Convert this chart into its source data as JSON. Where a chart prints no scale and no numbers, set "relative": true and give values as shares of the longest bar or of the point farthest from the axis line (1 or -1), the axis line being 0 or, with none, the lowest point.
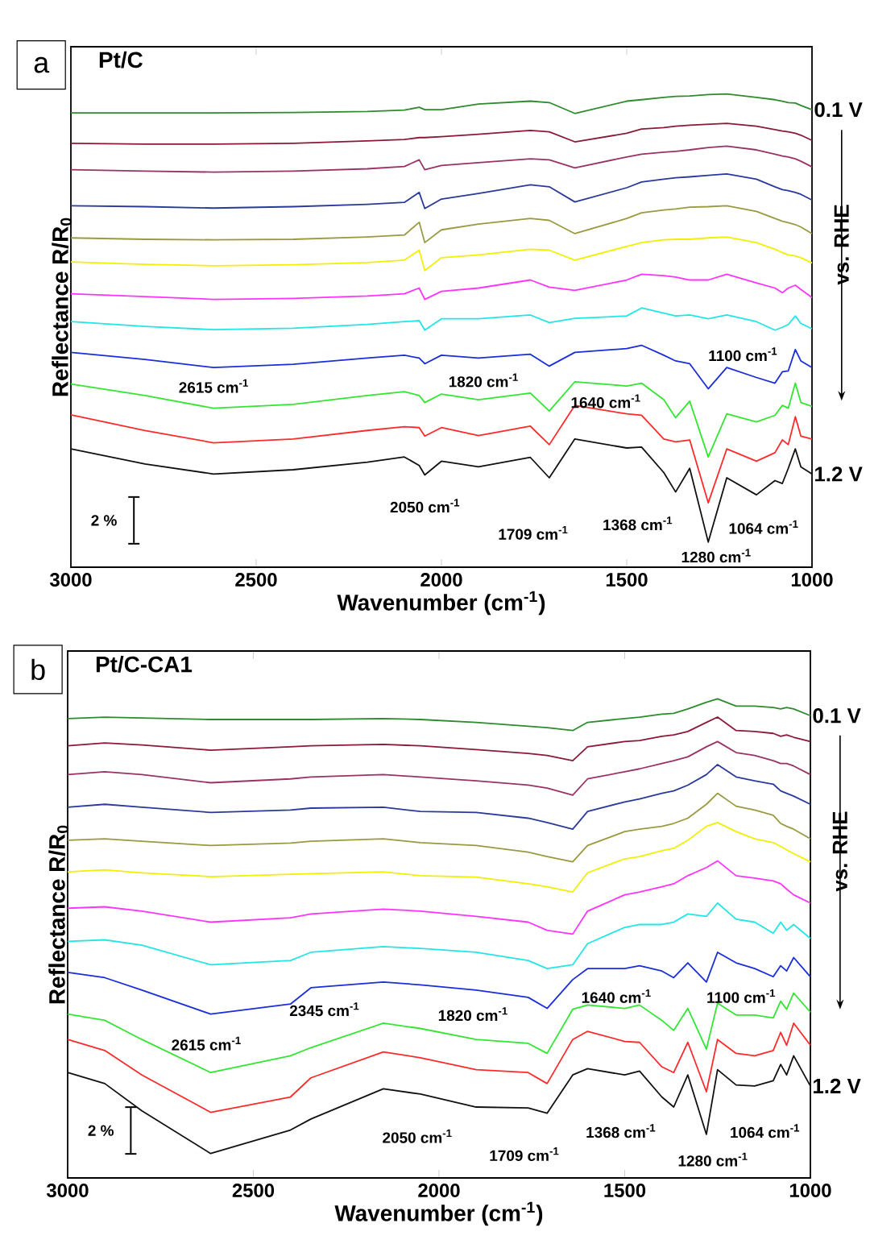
{
  "chart_data": [
    {
      "type": "line",
      "relative": true,
      "title": "Pt/C",
      "xlabel": "Wavenumber (cm$^{-1}$)",
      "ylabel": "Reflectance R/R$_{0}$",
      "xlim": [
        3000,
        1000
      ],
      "xticks": [
        3000,
        2500,
        2000,
        1500,
        1000
      ],
      "marker": "none",
      "grid": false,
      "x": [
        3000,
        2800,
        2615,
        2400,
        2200,
        2100,
        2060,
        2045,
        2000,
        1900,
        1760,
        1709,
        1640,
        1500,
        1460,
        1400,
        1368,
        1330,
        1280,
        1230,
        1150,
        1100,
        1080,
        1064,
        1045,
        1030,
        1000
      ],
      "series": [
        {
          "color": "#2e8b2e",
          "values": [
            0.96,
            0.96,
            0.96,
            0.961,
            0.963,
            0.966,
            0.972,
            0.967,
            0.967,
            0.979,
            0.985,
            0.982,
            0.959,
            0.985,
            0.988,
            0.993,
            0.995,
            0.996,
            0.999,
            1,
            0.993,
            0.988,
            0.985,
            0.982,
            0.981,
            0.976,
            0.967
          ]
        },
        {
          "color": "#8b1a3a",
          "values": [
            0.896,
            0.894,
            0.894,
            0.896,
            0.901,
            0.904,
            0.908,
            0.908,
            0.91,
            0.915,
            0.923,
            0.92,
            0.899,
            0.917,
            0.926,
            0.929,
            0.932,
            0.934,
            0.936,
            0.938,
            0.932,
            0.925,
            0.922,
            0.92,
            0.917,
            0.913,
            0.902
          ]
        },
        {
          "color": "#993366",
          "values": [
            0.84,
            0.837,
            0.835,
            0.837,
            0.842,
            0.847,
            0.861,
            0.84,
            0.849,
            0.855,
            0.863,
            0.861,
            0.844,
            0.867,
            0.873,
            0.877,
            0.879,
            0.882,
            0.887,
            0.89,
            0.882,
            0.873,
            0.869,
            0.867,
            0.863,
            0.858,
            0.846
          ]
        },
        {
          "color": "#2a3a9a",
          "values": [
            0.764,
            0.762,
            0.759,
            0.762,
            0.767,
            0.771,
            0.792,
            0.758,
            0.778,
            0.79,
            0.808,
            0.804,
            0.772,
            0.802,
            0.814,
            0.82,
            0.823,
            0.825,
            0.828,
            0.831,
            0.82,
            0.804,
            0.798,
            0.796,
            0.792,
            0.788,
            0.776
          ]
        },
        {
          "color": "#9a9a40",
          "values": [
            0.696,
            0.693,
            0.692,
            0.693,
            0.698,
            0.702,
            0.729,
            0.686,
            0.713,
            0.725,
            0.737,
            0.733,
            0.705,
            0.737,
            0.749,
            0.755,
            0.757,
            0.761,
            0.762,
            0.764,
            0.752,
            0.737,
            0.731,
            0.728,
            0.724,
            0.719,
            0.705
          ]
        },
        {
          "color": "#f0f000",
          "values": [
            0.645,
            0.64,
            0.637,
            0.639,
            0.644,
            0.649,
            0.67,
            0.627,
            0.654,
            0.66,
            0.672,
            0.67,
            0.649,
            0.678,
            0.686,
            0.692,
            0.693,
            0.693,
            0.696,
            0.698,
            0.686,
            0.672,
            0.665,
            0.66,
            0.658,
            0.654,
            0.643
          ]
        },
        {
          "color": "#ff33ff",
          "values": [
            0.578,
            0.572,
            0.566,
            0.568,
            0.573,
            0.578,
            0.59,
            0.566,
            0.583,
            0.59,
            0.607,
            0.592,
            0.585,
            0.607,
            0.619,
            0.616,
            0.613,
            0.607,
            0.607,
            0.619,
            0.601,
            0.59,
            0.58,
            0.59,
            0.596,
            0.587,
            0.57
          ]
        },
        {
          "color": "#22e6e6",
          "values": [
            0.519,
            0.509,
            0.502,
            0.505,
            0.513,
            0.519,
            0.521,
            0.501,
            0.525,
            0.525,
            0.533,
            0.517,
            0.526,
            0.531,
            0.548,
            0.537,
            0.531,
            0.533,
            0.525,
            0.533,
            0.519,
            0.501,
            0.507,
            0.513,
            0.531,
            0.515,
            0.504
          ]
        },
        {
          "color": "#1a2ed9",
          "values": [
            0.454,
            0.439,
            0.422,
            0.429,
            0.442,
            0.448,
            0.442,
            0.43,
            0.448,
            0.442,
            0.45,
            0.425,
            0.454,
            0.462,
            0.469,
            0.448,
            0.436,
            0.43,
            0.377,
            0.422,
            0.401,
            0.389,
            0.413,
            0.415,
            0.46,
            0.436,
            0.422
          ]
        },
        {
          "color": "#33e633",
          "values": [
            0.387,
            0.363,
            0.336,
            0.344,
            0.363,
            0.371,
            0.363,
            0.348,
            0.366,
            0.354,
            0.368,
            0.33,
            0.392,
            0.383,
            0.389,
            0.354,
            0.316,
            0.351,
            0.233,
            0.324,
            0.307,
            0.321,
            0.342,
            0.336,
            0.389,
            0.348,
            0.34
          ]
        },
        {
          "color": "#ff2a2a",
          "values": [
            0.322,
            0.289,
            0.263,
            0.271,
            0.289,
            0.297,
            0.295,
            0.277,
            0.295,
            0.278,
            0.298,
            0.259,
            0.342,
            0.324,
            0.321,
            0.271,
            0.265,
            0.269,
            0.136,
            0.25,
            0.224,
            0.242,
            0.269,
            0.259,
            0.318,
            0.277,
            0.271
          ]
        },
        {
          "color": "#111111",
          "values": [
            0.25,
            0.218,
            0.197,
            0.206,
            0.222,
            0.233,
            0.215,
            0.195,
            0.224,
            0.212,
            0.232,
            0.189,
            0.271,
            0.252,
            0.254,
            0.2,
            0.159,
            0.209,
            0.053,
            0.189,
            0.153,
            0.183,
            0.177,
            0.209,
            0.25,
            0.212,
            0.197
          ]
        }
      ],
      "annotations": [
        "a",
        "0.1 V",
        "vs. RHE",
        "1.2 V",
        "2 %",
        "2615 cm$^{-1}$",
        "1820 cm$^{-1}$",
        "1640 cm$^{-1}$",
        "1100 cm$^{-1}$",
        "2050 cm$^{-1}$",
        "1709 cm$^{-1}$",
        "1368 cm$^{-1}$",
        "1064 cm$^{-1}$",
        "1280 cm$^{-1}$"
      ]
    },
    {
      "type": "line",
      "relative": true,
      "title": "Pt/C-CA1",
      "xlabel": "Wavenumber (cm$^{-1}$)",
      "ylabel": "Reflectance R/R$_{0}$",
      "xlim": [
        3000,
        1000
      ],
      "xticks": [
        3000,
        2500,
        2000,
        1500,
        1000
      ],
      "marker": "none",
      "grid": false,
      "x": [
        3000,
        2900,
        2800,
        2615,
        2400,
        2345,
        2150,
        2050,
        1900,
        1760,
        1709,
        1640,
        1600,
        1500,
        1460,
        1400,
        1368,
        1330,
        1280,
        1250,
        1200,
        1150,
        1100,
        1080,
        1064,
        1045,
        1000
      ],
      "series": [
        {
          "color": "#2e8b2e",
          "values": [
            0.959,
            0.962,
            0.96,
            0.957,
            0.957,
            0.957,
            0.959,
            0.957,
            0.951,
            0.943,
            0.94,
            0.934,
            0.951,
            0.959,
            0.962,
            0.968,
            0.97,
            0.979,
            0.993,
            1,
            0.985,
            0.985,
            0.982,
            0.979,
            0.982,
            0.979,
            0.965
          ]
        },
        {
          "color": "#8b1a3a",
          "values": [
            0.902,
            0.908,
            0.904,
            0.893,
            0.9,
            0.902,
            0.905,
            0.902,
            0.894,
            0.886,
            0.882,
            0.871,
            0.9,
            0.911,
            0.913,
            0.922,
            0.925,
            0.932,
            0.951,
            0.962,
            0.934,
            0.932,
            0.928,
            0.922,
            0.925,
            0.92,
            0.911
          ]
        },
        {
          "color": "#993366",
          "values": [
            0.842,
            0.848,
            0.842,
            0.825,
            0.833,
            0.837,
            0.842,
            0.837,
            0.829,
            0.82,
            0.814,
            0.799,
            0.833,
            0.848,
            0.854,
            0.865,
            0.871,
            0.879,
            0.9,
            0.911,
            0.888,
            0.882,
            0.871,
            0.865,
            0.865,
            0.86,
            0.842
          ]
        },
        {
          "color": "#2a3a9a",
          "values": [
            0.774,
            0.78,
            0.774,
            0.763,
            0.768,
            0.772,
            0.774,
            0.765,
            0.763,
            0.751,
            0.742,
            0.728,
            0.765,
            0.785,
            0.791,
            0.803,
            0.808,
            0.82,
            0.842,
            0.863,
            0.837,
            0.829,
            0.822,
            0.808,
            0.803,
            0.797,
            0.78
          ]
        },
        {
          "color": "#9a9a40",
          "values": [
            0.705,
            0.708,
            0.703,
            0.694,
            0.699,
            0.703,
            0.708,
            0.7,
            0.694,
            0.68,
            0.671,
            0.66,
            0.694,
            0.723,
            0.728,
            0.734,
            0.74,
            0.751,
            0.78,
            0.803,
            0.776,
            0.768,
            0.757,
            0.74,
            0.734,
            0.728,
            0.708
          ]
        },
        {
          "color": "#f0f000",
          "values": [
            0.639,
            0.643,
            0.637,
            0.629,
            0.634,
            0.635,
            0.639,
            0.631,
            0.628,
            0.614,
            0.608,
            0.597,
            0.637,
            0.666,
            0.671,
            0.683,
            0.688,
            0.705,
            0.734,
            0.742,
            0.723,
            0.708,
            0.7,
            0.692,
            0.685,
            0.677,
            0.66
          ]
        },
        {
          "color": "#ff33ff",
          "values": [
            0.563,
            0.566,
            0.557,
            0.534,
            0.543,
            0.551,
            0.561,
            0.557,
            0.546,
            0.534,
            0.517,
            0.509,
            0.557,
            0.591,
            0.597,
            0.608,
            0.614,
            0.631,
            0.648,
            0.662,
            0.631,
            0.626,
            0.62,
            0.614,
            0.603,
            0.591,
            0.574
          ]
        },
        {
          "color": "#22e6e6",
          "values": [
            0.494,
            0.497,
            0.486,
            0.445,
            0.454,
            0.471,
            0.483,
            0.479,
            0.471,
            0.454,
            0.437,
            0.445,
            0.489,
            0.523,
            0.529,
            0.529,
            0.534,
            0.551,
            0.546,
            0.574,
            0.54,
            0.534,
            0.511,
            0.534,
            0.517,
            0.529,
            0.5
          ]
        },
        {
          "color": "#1a2ed9",
          "values": [
            0.429,
            0.418,
            0.392,
            0.342,
            0.363,
            0.397,
            0.409,
            0.403,
            0.392,
            0.377,
            0.354,
            0.414,
            0.437,
            0.437,
            0.443,
            0.432,
            0.418,
            0.449,
            0.409,
            0.471,
            0.449,
            0.437,
            0.42,
            0.443,
            0.432,
            0.46,
            0.42
          ]
        },
        {
          "color": "#33e633",
          "values": [
            0.342,
            0.329,
            0.289,
            0.22,
            0.255,
            0.272,
            0.323,
            0.312,
            0.289,
            0.281,
            0.26,
            0.352,
            0.361,
            0.354,
            0.361,
            0.329,
            0.308,
            0.354,
            0.269,
            0.365,
            0.34,
            0.34,
            0.334,
            0.369,
            0.352,
            0.386,
            0.346
          ]
        },
        {
          "color": "#ff2a2a",
          "values": [
            0.289,
            0.266,
            0.215,
            0.137,
            0.169,
            0.209,
            0.263,
            0.251,
            0.226,
            0.22,
            0.197,
            0.289,
            0.306,
            0.285,
            0.283,
            0.232,
            0.22,
            0.283,
            0.18,
            0.289,
            0.26,
            0.255,
            0.266,
            0.304,
            0.277,
            0.323,
            0.277
          ]
        },
        {
          "color": "#111111",
          "values": [
            0.22,
            0.197,
            0.14,
            0.051,
            0.1,
            0.123,
            0.186,
            0.175,
            0.148,
            0.146,
            0.135,
            0.215,
            0.228,
            0.215,
            0.223,
            0.169,
            0.148,
            0.215,
            0.091,
            0.226,
            0.194,
            0.192,
            0.203,
            0.237,
            0.215,
            0.255,
            0.192
          ]
        }
      ],
      "annotations": [
        "b",
        "0.1 V",
        "vs. RHE",
        "1.2 V",
        "2 %",
        "2615 cm$^{-1}$",
        "2345 cm$^{-1}$",
        "1820 cm$^{-1}$",
        "1640 cm$^{-1}$",
        "1100 cm$^{-1}$",
        "2050 cm$^{-1}$",
        "1709 cm$^{-1}$",
        "1368 cm$^{-1}$",
        "1064 cm$^{-1}$",
        "1280 cm$^{-1}$"
      ]
    }
  ]
}
